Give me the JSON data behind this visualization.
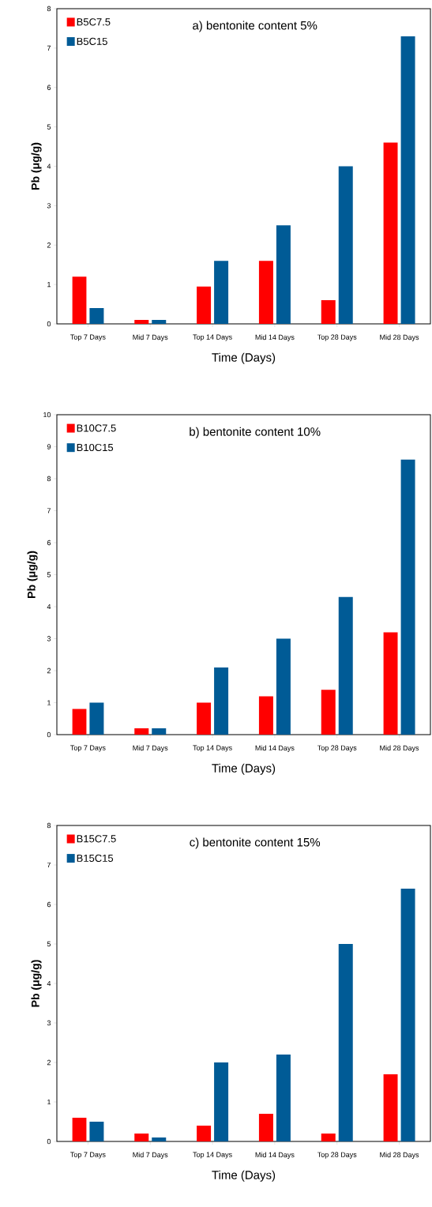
{
  "chart_data": [
    {
      "type": "bar",
      "title": "a) bentonite content 5%",
      "xlabel": "Time (Days)",
      "ylabel": "Pb (μg/g)",
      "categories": [
        "Top 7 Days",
        "Mid 7 Days",
        "Top 14 Days",
        "Mid 14 Days",
        "Top 28 Days",
        "Mid 28 Days"
      ],
      "ylim": [
        0,
        8
      ],
      "yticks": [
        0,
        1,
        2,
        3,
        4,
        5,
        6,
        7,
        8
      ],
      "legend": "top left",
      "series": [
        {
          "name": "B5C7.5",
          "color": "#ff0000",
          "values": [
            1.2,
            0.1,
            0.95,
            1.6,
            0.6,
            4.6
          ]
        },
        {
          "name": "B5C15",
          "color": "#005b96",
          "values": [
            0.4,
            0.1,
            1.6,
            2.5,
            4.0,
            7.3
          ]
        }
      ]
    },
    {
      "type": "bar",
      "title": "b) bentonite content 10%",
      "xlabel": "Time (Days)",
      "ylabel": "Pb (μg/g)",
      "categories": [
        "Top 7 Days",
        "Mid 7 Days",
        "Top 14 Days",
        "Mid 14 Days",
        "Top 28 Days",
        "Mid 28 Days"
      ],
      "ylim": [
        0,
        10
      ],
      "yticks": [
        0,
        1,
        2,
        3,
        4,
        5,
        6,
        7,
        8,
        9,
        10
      ],
      "legend": "top left",
      "series": [
        {
          "name": "B10C7.5",
          "color": "#ff0000",
          "values": [
            0.8,
            0.2,
            1.0,
            1.2,
            1.4,
            3.2
          ]
        },
        {
          "name": "B10C15",
          "color": "#005b96",
          "values": [
            1.0,
            0.2,
            2.1,
            3.0,
            4.3,
            8.6
          ]
        }
      ]
    },
    {
      "type": "bar",
      "title": "c) bentonite content 15%",
      "xlabel": "Time (Days)",
      "ylabel": "Pb (μg/g)",
      "categories": [
        "Top 7 Days",
        "Mid 7 Days",
        "Top 14 Days",
        "Mid 14 Days",
        "Top 28 Days",
        "Mid 28 Days"
      ],
      "ylim": [
        0,
        8
      ],
      "yticks": [
        0,
        1,
        2,
        3,
        4,
        5,
        6,
        7,
        8
      ],
      "legend": "top left",
      "series": [
        {
          "name": "B15C7.5",
          "color": "#ff0000",
          "values": [
            0.6,
            0.2,
            0.4,
            0.7,
            0.2,
            1.7
          ]
        },
        {
          "name": "B15C15",
          "color": "#005b96",
          "values": [
            0.5,
            0.1,
            2.0,
            2.2,
            5.0,
            6.4
          ]
        }
      ]
    }
  ]
}
